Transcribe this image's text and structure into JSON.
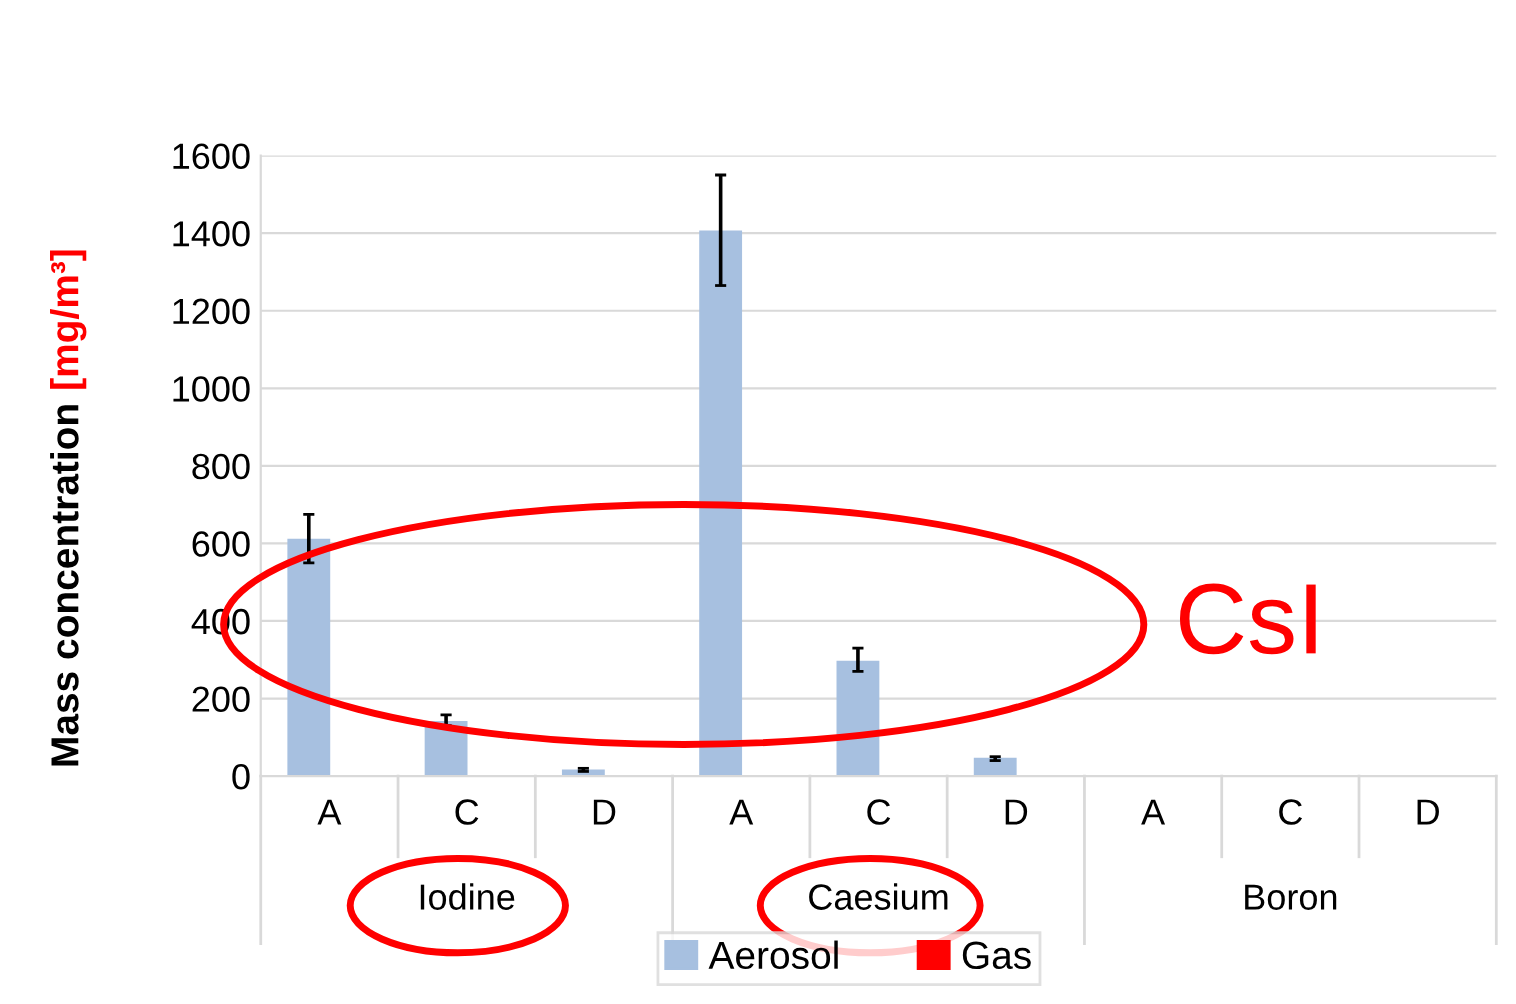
{
  "chart_data": {
    "type": "bar",
    "ylabel": "Mass concentration [mg/m³]",
    "categories": [
      "A",
      "C",
      "D",
      "A",
      "C",
      "D",
      "A",
      "C",
      "D"
    ],
    "series": [
      {
        "name": "Aerosol",
        "color": "#a7c0e0",
        "values": [
          610,
          140,
          15,
          1405,
          295,
          45,
          0,
          0,
          0
        ],
        "errors": [
          [
            550,
            675
          ],
          [
            130,
            158
          ],
          [
            12,
            20
          ],
          [
            1265,
            1550
          ],
          [
            270,
            330
          ],
          [
            40,
            50
          ],
          null,
          null,
          null
        ]
      },
      {
        "name": "Gas",
        "color": "#ff0000",
        "values": [
          0,
          0,
          0,
          0,
          0,
          0,
          0,
          0,
          0
        ]
      }
    ],
    "annotations": [
      "Iodine",
      "Caesium",
      "Boron",
      "CsI"
    ],
    "ylim": [
      0,
      1600
    ],
    "yticks": [
      0,
      200,
      400,
      600,
      800,
      1000,
      1200,
      1400,
      1600
    ],
    "grid": "y",
    "legend": "bottom"
  }
}
